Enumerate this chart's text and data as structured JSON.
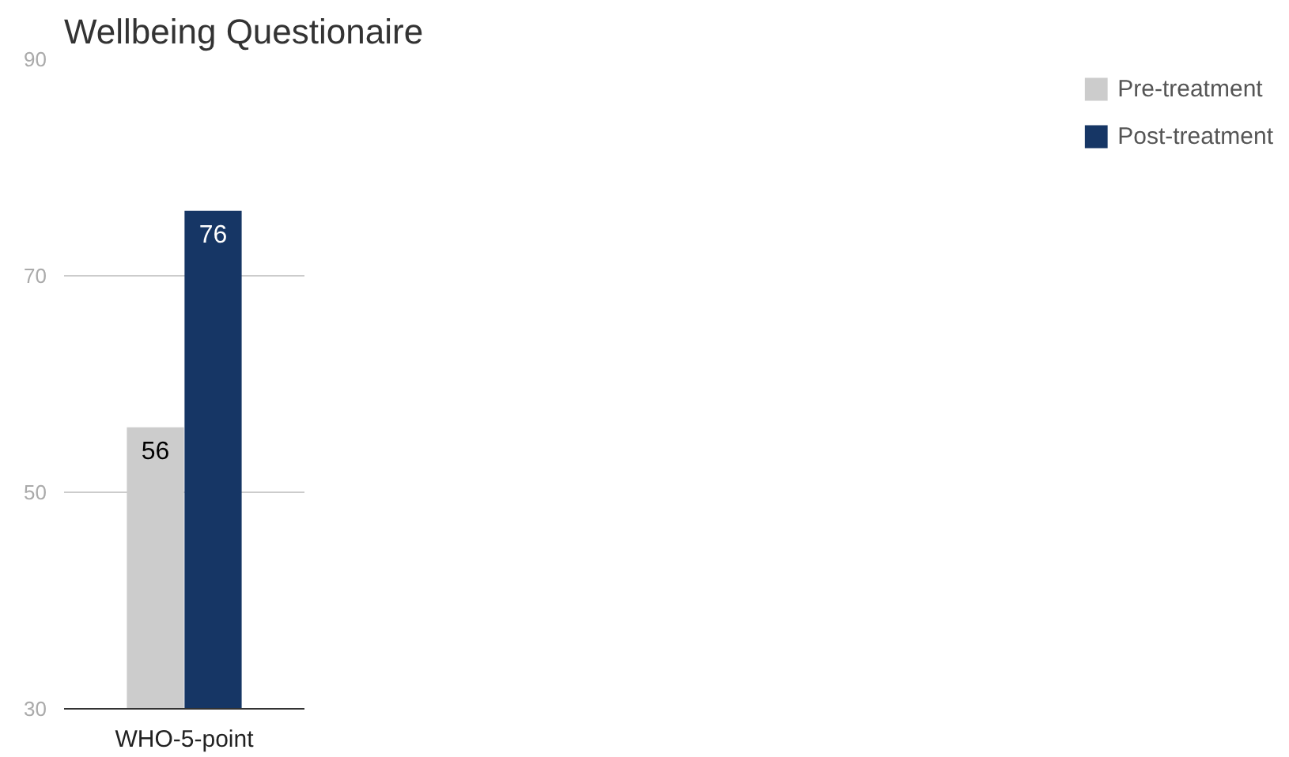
{
  "chart_data": {
    "type": "bar",
    "title": "Wellbeing Questionaire",
    "categories": [
      "WHO-5-point"
    ],
    "series": [
      {
        "name": "Pre-treatment",
        "color": "#cccccc",
        "values": [
          56
        ]
      },
      {
        "name": "Post-treatment",
        "color": "#163665",
        "values": [
          76
        ]
      }
    ],
    "ylim": [
      30,
      90
    ],
    "yticks": [
      30,
      50,
      70,
      90
    ],
    "grid": "y",
    "legend": "right",
    "data_labels": true
  }
}
